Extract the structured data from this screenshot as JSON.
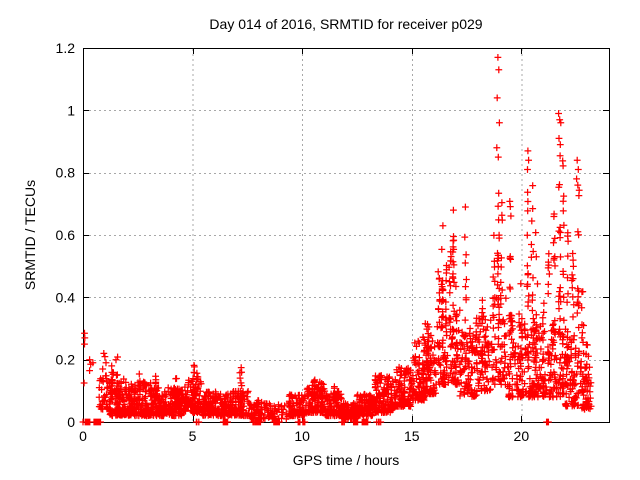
{
  "chart_data": {
    "type": "scatter",
    "title": "Day 014 of 2016, SRMTID for receiver p029",
    "xlabel": "GPS time / hours",
    "ylabel": "SRMTID / TECUs",
    "xlim": [
      0,
      24
    ],
    "ylim": [
      0,
      1.2
    ],
    "xtick_values": [
      0,
      5,
      10,
      15,
      20
    ],
    "xtick_labels": [
      "0",
      "5",
      "10",
      "15",
      "20"
    ],
    "ytick_values": [
      0,
      0.2,
      0.4,
      0.6,
      0.8,
      1,
      1.2
    ],
    "ytick_labels": [
      "0",
      "0.2",
      "0.4",
      "0.6",
      "0.8",
      "1",
      "1.2"
    ],
    "grid": true,
    "legend": "none",
    "marker": "plus",
    "marker_color": "#ff0000",
    "grid_color": "#a8a8a8",
    "axis_color": "#000000",
    "background": "#ffffff",
    "series_name": "SRMTID",
    "bands_format": "[x_start,x_end,y_min,y_max,n_points] dense noise band",
    "bands": [
      [
        0.7,
        1.2,
        0.04,
        0.15,
        35
      ],
      [
        1.2,
        2.0,
        0.02,
        0.14,
        120
      ],
      [
        2.0,
        3.1,
        0.02,
        0.13,
        150
      ],
      [
        3.1,
        4.6,
        0.02,
        0.11,
        200
      ],
      [
        4.6,
        5.4,
        0.03,
        0.14,
        100
      ],
      [
        5.4,
        7.0,
        0.02,
        0.1,
        200
      ],
      [
        7.0,
        7.6,
        0.02,
        0.12,
        55
      ],
      [
        7.6,
        8.4,
        0.01,
        0.07,
        55
      ],
      [
        8.4,
        9.4,
        0.01,
        0.06,
        40
      ],
      [
        9.4,
        10.2,
        0.02,
        0.09,
        85
      ],
      [
        10.2,
        11.0,
        0.03,
        0.13,
        100
      ],
      [
        11.0,
        11.8,
        0.02,
        0.1,
        95
      ],
      [
        11.8,
        12.5,
        0.01,
        0.06,
        80
      ],
      [
        12.5,
        13.3,
        0.02,
        0.09,
        100
      ],
      [
        13.3,
        14.2,
        0.03,
        0.15,
        115
      ],
      [
        14.2,
        15.0,
        0.05,
        0.18,
        105
      ],
      [
        15.0,
        15.6,
        0.07,
        0.26,
        85
      ],
      [
        15.6,
        16.1,
        0.09,
        0.32,
        75
      ],
      [
        16.1,
        17.2,
        0.12,
        0.38,
        85
      ],
      [
        17.2,
        18.0,
        0.08,
        0.3,
        80
      ],
      [
        18.0,
        18.6,
        0.1,
        0.35,
        60
      ],
      [
        18.6,
        19.4,
        0.12,
        0.4,
        60
      ],
      [
        19.4,
        20.2,
        0.08,
        0.35,
        80
      ],
      [
        20.2,
        21.0,
        0.08,
        0.32,
        80
      ],
      [
        21.0,
        22.0,
        0.08,
        0.32,
        85
      ],
      [
        22.0,
        22.7,
        0.05,
        0.3,
        70
      ],
      [
        22.7,
        23.2,
        0.04,
        0.22,
        50
      ]
    ],
    "columns_format": "[x_center,y_low,y_high,n_points] vertical spike of points",
    "columns": [
      [
        1.35,
        0.1,
        0.22,
        8
      ],
      [
        1.55,
        0.1,
        0.21,
        7
      ],
      [
        2.6,
        0.08,
        0.18,
        8
      ],
      [
        3.35,
        0.06,
        0.15,
        7
      ],
      [
        4.25,
        0.05,
        0.14,
        7
      ],
      [
        5.05,
        0.06,
        0.19,
        10
      ],
      [
        5.2,
        0.05,
        0.16,
        8
      ],
      [
        7.2,
        0.04,
        0.19,
        10
      ],
      [
        10.55,
        0.06,
        0.14,
        8
      ],
      [
        11.5,
        0.05,
        0.12,
        7
      ],
      [
        13.9,
        0.06,
        0.16,
        8
      ],
      [
        15.55,
        0.12,
        0.3,
        10
      ],
      [
        15.75,
        0.12,
        0.34,
        9
      ],
      [
        16.25,
        0.18,
        0.55,
        14
      ],
      [
        16.4,
        0.2,
        0.62,
        16
      ],
      [
        16.55,
        0.18,
        0.52,
        12
      ],
      [
        16.75,
        0.22,
        0.58,
        12
      ],
      [
        16.9,
        0.25,
        0.67,
        14
      ],
      [
        17.05,
        0.15,
        0.45,
        10
      ],
      [
        17.45,
        0.12,
        0.62,
        12
      ],
      [
        17.95,
        0.12,
        0.35,
        10
      ],
      [
        18.2,
        0.15,
        0.42,
        10
      ],
      [
        18.75,
        0.2,
        0.62,
        12
      ],
      [
        18.95,
        0.3,
        0.83,
        14
      ],
      [
        19.1,
        0.2,
        0.72,
        12
      ],
      [
        19.5,
        0.15,
        0.72,
        14
      ],
      [
        20.0,
        0.1,
        0.45,
        12
      ],
      [
        20.3,
        0.2,
        0.8,
        16
      ],
      [
        20.5,
        0.15,
        0.76,
        14
      ],
      [
        20.7,
        0.1,
        0.62,
        12
      ],
      [
        21.0,
        0.08,
        0.45,
        12
      ],
      [
        21.25,
        0.1,
        0.55,
        12
      ],
      [
        21.5,
        0.1,
        0.68,
        14
      ],
      [
        21.75,
        0.3,
        0.88,
        16
      ],
      [
        21.9,
        0.2,
        0.84,
        14
      ],
      [
        22.1,
        0.1,
        0.62,
        12
      ],
      [
        22.35,
        0.08,
        0.55,
        12
      ],
      [
        22.6,
        0.15,
        0.77,
        14
      ],
      [
        22.8,
        0.05,
        0.42,
        12
      ],
      [
        23.0,
        0.05,
        0.25,
        10
      ]
    ],
    "zero_runs_format": "[x_start,x_end,n_points] points at exactly y=0 on the axis",
    "zero_runs": [
      [
        0.1,
        0.35,
        26
      ],
      [
        0.5,
        0.8,
        22
      ],
      [
        5.1,
        5.3,
        5
      ],
      [
        6.4,
        6.6,
        16
      ],
      [
        7.75,
        8.1,
        20
      ],
      [
        8.7,
        9.0,
        18
      ],
      [
        9.75,
        9.9,
        4
      ],
      [
        10.0,
        10.15,
        4
      ],
      [
        11.8,
        11.95,
        4
      ],
      [
        12.3,
        12.55,
        14
      ],
      [
        12.7,
        13.0,
        16
      ],
      [
        13.4,
        13.6,
        5
      ],
      [
        21.15,
        21.25,
        4
      ]
    ],
    "outlier_points_format": "[x,y] individually visible extreme points",
    "outlier_points": [
      [
        0.0,
        0.0
      ],
      [
        0.05,
        0.125
      ],
      [
        0.07,
        0.285
      ],
      [
        0.08,
        0.27
      ],
      [
        0.07,
        0.25
      ],
      [
        0.3,
        0.2
      ],
      [
        0.35,
        0.185
      ],
      [
        0.3,
        0.165
      ],
      [
        0.45,
        0.19
      ],
      [
        0.95,
        0.22
      ],
      [
        1.0,
        0.21
      ],
      [
        1.05,
        0.19
      ],
      [
        0.9,
        0.17
      ],
      [
        16.42,
        0.63
      ],
      [
        16.9,
        0.68
      ],
      [
        17.45,
        0.69
      ],
      [
        18.93,
        1.17
      ],
      [
        18.97,
        1.13
      ],
      [
        18.9,
        1.04
      ],
      [
        19.0,
        0.96
      ],
      [
        18.88,
        0.88
      ],
      [
        18.95,
        0.85
      ],
      [
        20.3,
        0.87
      ],
      [
        20.33,
        0.84
      ],
      [
        20.28,
        0.81
      ],
      [
        21.7,
        0.99
      ],
      [
        21.75,
        0.97
      ],
      [
        21.8,
        0.96
      ],
      [
        21.72,
        0.91
      ],
      [
        21.78,
        0.89
      ],
      [
        22.55,
        0.84
      ],
      [
        22.6,
        0.81
      ],
      [
        22.52,
        0.78
      ]
    ]
  }
}
